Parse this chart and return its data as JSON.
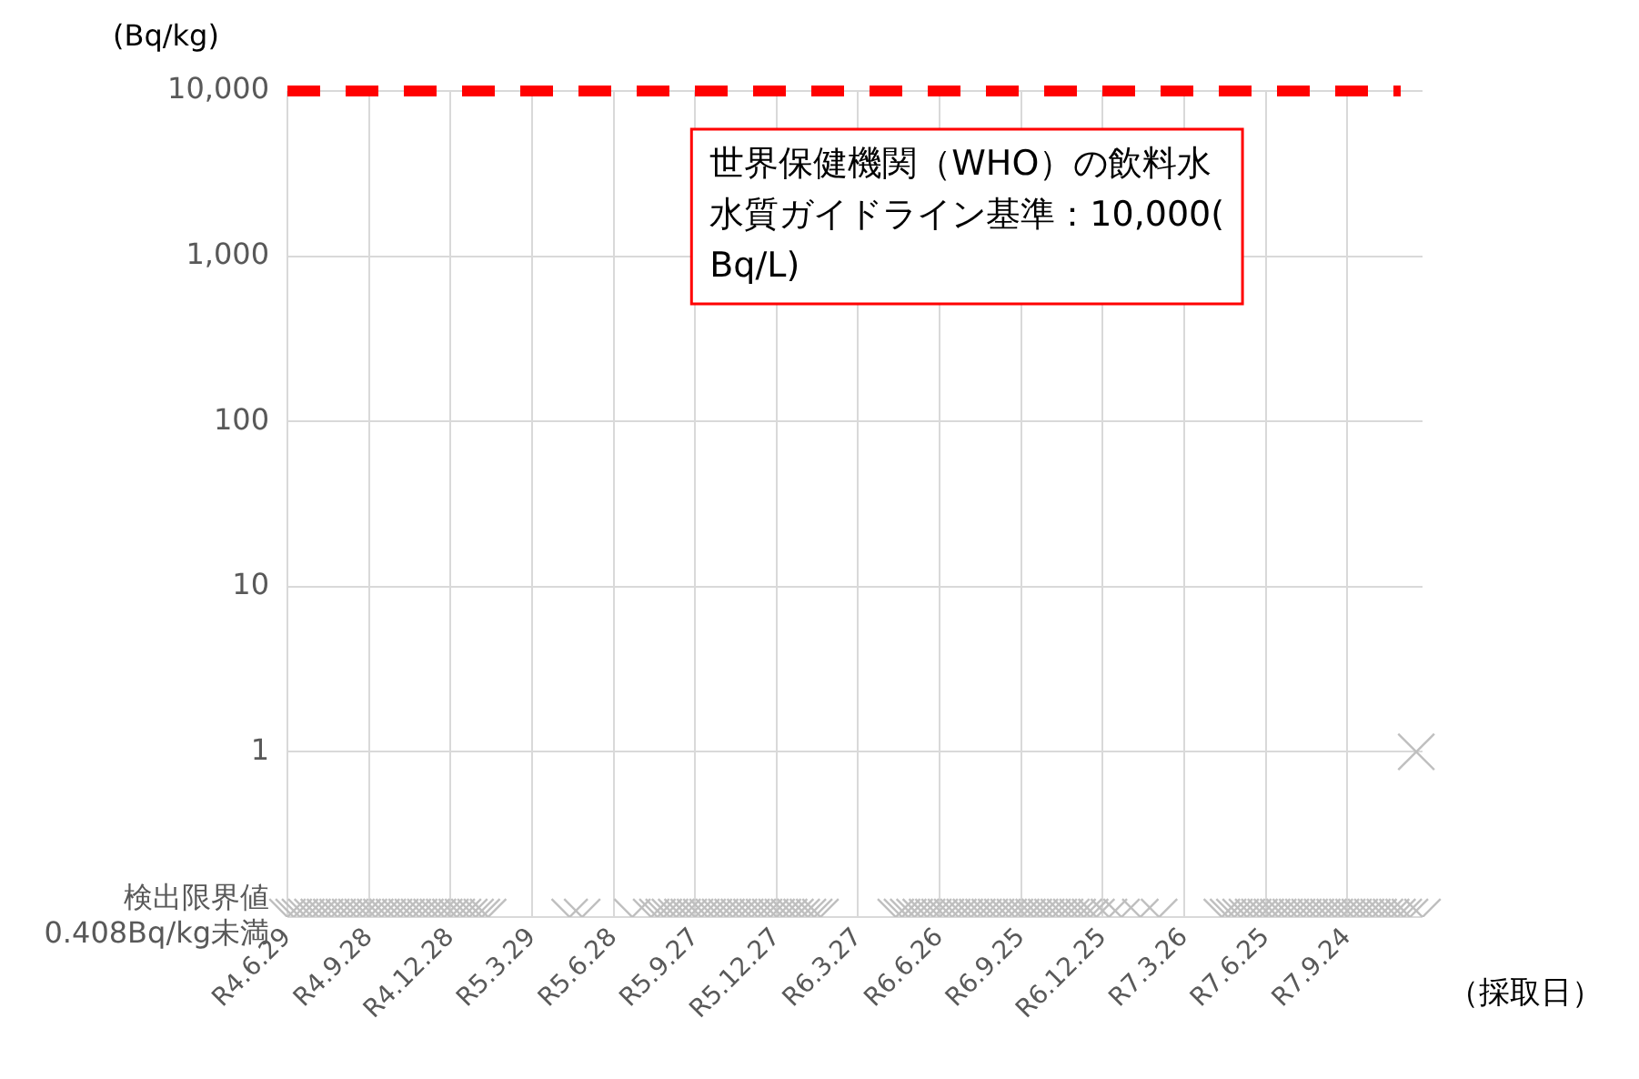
{
  "chart_data": {
    "type": "scatter",
    "ylabel": "(Bq/kg)",
    "xlabel": "（採取日）",
    "categories": [
      "R4.6.29",
      null,
      null,
      null,
      null,
      null,
      null,
      null,
      null,
      null,
      null,
      null,
      null,
      "R4.9.28",
      null,
      null,
      null,
      null,
      null,
      null,
      null,
      null,
      null,
      null,
      null,
      null,
      "R4.12.28",
      null,
      null,
      null,
      null,
      null,
      null,
      null,
      null,
      null,
      null,
      null,
      null,
      "R5.3.29",
      null,
      null,
      null,
      null,
      null,
      null,
      null,
      null,
      null,
      null,
      null,
      null,
      "R5.6.28",
      null,
      null,
      null,
      null,
      null,
      null,
      null,
      null,
      null,
      null,
      null,
      null,
      "R5.9.27",
      null,
      null,
      null,
      null,
      null,
      null,
      null,
      null,
      null,
      null,
      null,
      null,
      "R5.12.27",
      null,
      null,
      null,
      null,
      null,
      null,
      null,
      null,
      null,
      null,
      null,
      null,
      "R6.3.27",
      null,
      null,
      null,
      null,
      null,
      null,
      null,
      null,
      null,
      null,
      null,
      null,
      "R6.6.26",
      null,
      null,
      null,
      null,
      null,
      null,
      null,
      null,
      null,
      null,
      null,
      null,
      "R6.9.25",
      null,
      null,
      null,
      null,
      null,
      null,
      null,
      null,
      null,
      null,
      null,
      null,
      "R6.12.25",
      null,
      null,
      null,
      null,
      null,
      null,
      null,
      null,
      null,
      null,
      null,
      null,
      "R7.3.26",
      null,
      null,
      null,
      null,
      null,
      null,
      null,
      null,
      null,
      null,
      null,
      null,
      "R7.6.25",
      null,
      null,
      null,
      null,
      null,
      null,
      null,
      null,
      null,
      null,
      null,
      null,
      "R7.9.24",
      null,
      null,
      null,
      null,
      null,
      null,
      null,
      null,
      null,
      null,
      null,
      null
    ],
    "series": [
      {
        "color": "#bfbfbf",
        "values": [
          0.1,
          0.1,
          0.1,
          0.1,
          0.1,
          0.1,
          0.1,
          0.1,
          0.1,
          0.1,
          0.1,
          0.1,
          0.1,
          0.1,
          0.1,
          0.1,
          0.1,
          0.1,
          0.1,
          0.1,
          0.1,
          0.1,
          0.1,
          0.1,
          0.1,
          0.1,
          0.1,
          0.1,
          0.1,
          0.1,
          0.1,
          0.1,
          0.1,
          null,
          null,
          null,
          null,
          null,
          null,
          null,
          null,
          null,
          null,
          null,
          null,
          0.1,
          null,
          0.1,
          null,
          null,
          null,
          null,
          null,
          null,
          null,
          0.1,
          null,
          null,
          0.1,
          0.1,
          0.1,
          0.1,
          0.1,
          0.1,
          0.1,
          0.1,
          0.1,
          0.1,
          0.1,
          0.1,
          0.1,
          0.1,
          0.1,
          0.1,
          0.1,
          0.1,
          0.1,
          0.1,
          0.1,
          0.1,
          0.1,
          0.1,
          0.1,
          0.1,
          0.1,
          0.1,
          null,
          null,
          null,
          null,
          null,
          null,
          null,
          null,
          null,
          null,
          null,
          0.1,
          0.1,
          0.1,
          0.1,
          0.1,
          0.1,
          0.1,
          0.1,
          0.1,
          0.1,
          0.1,
          0.1,
          0.1,
          0.1,
          0.1,
          0.1,
          0.1,
          0.1,
          0.1,
          0.1,
          0.1,
          0.1,
          0.1,
          0.1,
          0.1,
          0.1,
          0.1,
          0.1,
          0.1,
          0.1,
          0.1,
          0.1,
          0.1,
          null,
          0.1,
          null,
          0.1,
          null,
          null,
          0.1,
          null,
          null,
          0.1,
          null,
          null,
          null,
          null,
          null,
          null,
          null,
          null,
          null,
          0.1,
          0.1,
          0.1,
          0.1,
          0.1,
          0.1,
          0.1,
          0.1,
          0.1,
          0.1,
          0.1,
          0.1,
          0.1,
          0.1,
          0.1,
          0.1,
          0.1,
          0.1,
          0.1,
          0.1,
          0.1,
          0.1,
          0.1,
          0.1,
          0.1,
          0.1,
          0.1,
          0.1,
          0.1,
          0.1,
          0.1,
          1,
          0.1
        ]
      }
    ],
    "log": "y",
    "ylim": [
      0.1,
      10000
    ],
    "yticks": [
      {
        "value": 0.1,
        "label": "検出限界値\n0.408Bq/kg未満"
      },
      1,
      10,
      100,
      {
        "value": 1000,
        "label": "1,000"
      },
      {
        "value": 10000,
        "label": "10,000"
      }
    ],
    "grid": true,
    "marker": "cross",
    "ref_lines": [
      {
        "axis": "y",
        "value": 10000,
        "label": "世界保健機関（WHO）の飲料水水質ガイドライン基準：10,000(Bq/L)",
        "color": "#ff0000",
        "line_style": "dashed"
      }
    ]
  }
}
